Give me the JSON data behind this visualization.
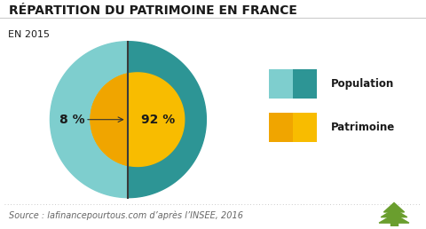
{
  "title": "RÉPARTITION DU PATRIMOINE EN FRANCE",
  "subtitle": "EN 2015",
  "source": "Source : lafinancepourtous.com d’après l’INSEE, 2016",
  "outer_color_left": "#7ecece",
  "outer_color_right": "#2d9595",
  "inner_color_left": "#f0a500",
  "inner_color_right": "#f8bc00",
  "divider_color": "#3a3a3a",
  "label_left": "8 %",
  "label_right": "92 %",
  "legend_labels": [
    "Population",
    "Patrimoine"
  ],
  "background_color": "#ffffff",
  "title_fontsize": 10,
  "subtitle_fontsize": 8,
  "label_fontsize": 10,
  "source_fontsize": 7,
  "tree_color": "#6a9e2e"
}
